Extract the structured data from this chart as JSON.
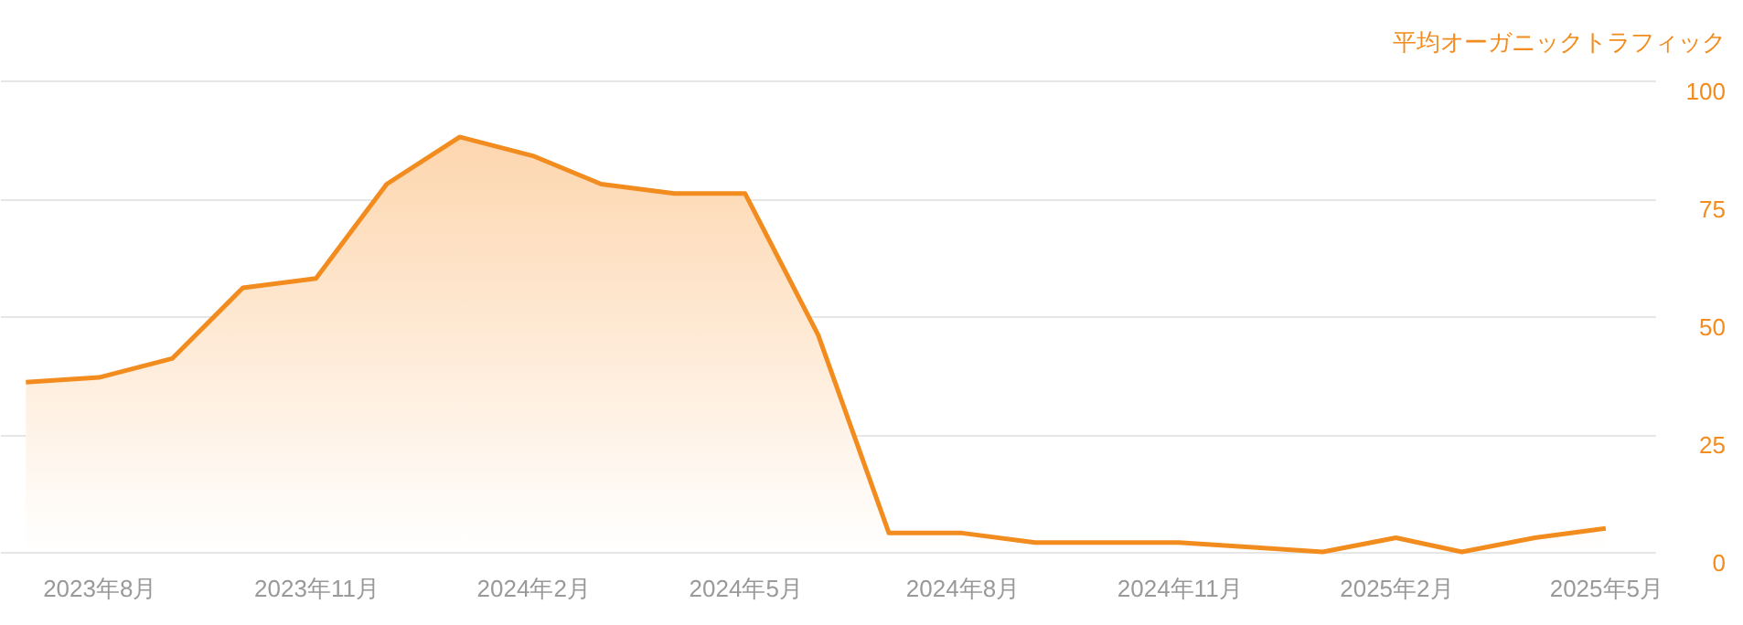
{
  "chart_data": {
    "type": "area",
    "ylabel": "平均オーガニックトラフィック",
    "x": [
      "2023-07",
      "2023-08",
      "2023-09",
      "2023-10",
      "2023-11",
      "2023-12",
      "2024-01",
      "2024-02",
      "2024-03",
      "2024-04",
      "2024-05",
      "2024-06",
      "2024-07",
      "2024-08",
      "2024-09",
      "2024-10",
      "2024-11",
      "2024-12",
      "2025-01",
      "2025-02",
      "2025-03",
      "2025-04",
      "2025-05"
    ],
    "series": [
      {
        "color": "#f28c1e",
        "values": [
          36,
          37,
          41,
          56,
          58,
          78,
          88,
          84,
          78,
          76,
          76,
          46,
          4,
          4,
          2,
          2,
          2,
          1,
          0,
          3,
          0,
          3,
          5
        ]
      }
    ],
    "xlim": [
      "2023-06-20",
      "2025-05-22"
    ],
    "xticks": [
      {
        "value": "2023-08",
        "label": "2023年8月"
      },
      {
        "value": "2023-11",
        "label": "2023年11月"
      },
      {
        "value": "2024-02",
        "label": "2024年2月"
      },
      {
        "value": "2024-05",
        "label": "2024年5月"
      },
      {
        "value": "2024-08",
        "label": "2024年8月"
      },
      {
        "value": "2024-11",
        "label": "2024年11月"
      },
      {
        "value": "2025-02",
        "label": "2025年2月"
      },
      {
        "value": "2025-05",
        "label": "2025年5月"
      }
    ],
    "ylim": [
      0,
      100
    ],
    "yticks": [
      0,
      25,
      50,
      75,
      100
    ],
    "grid": "y"
  }
}
